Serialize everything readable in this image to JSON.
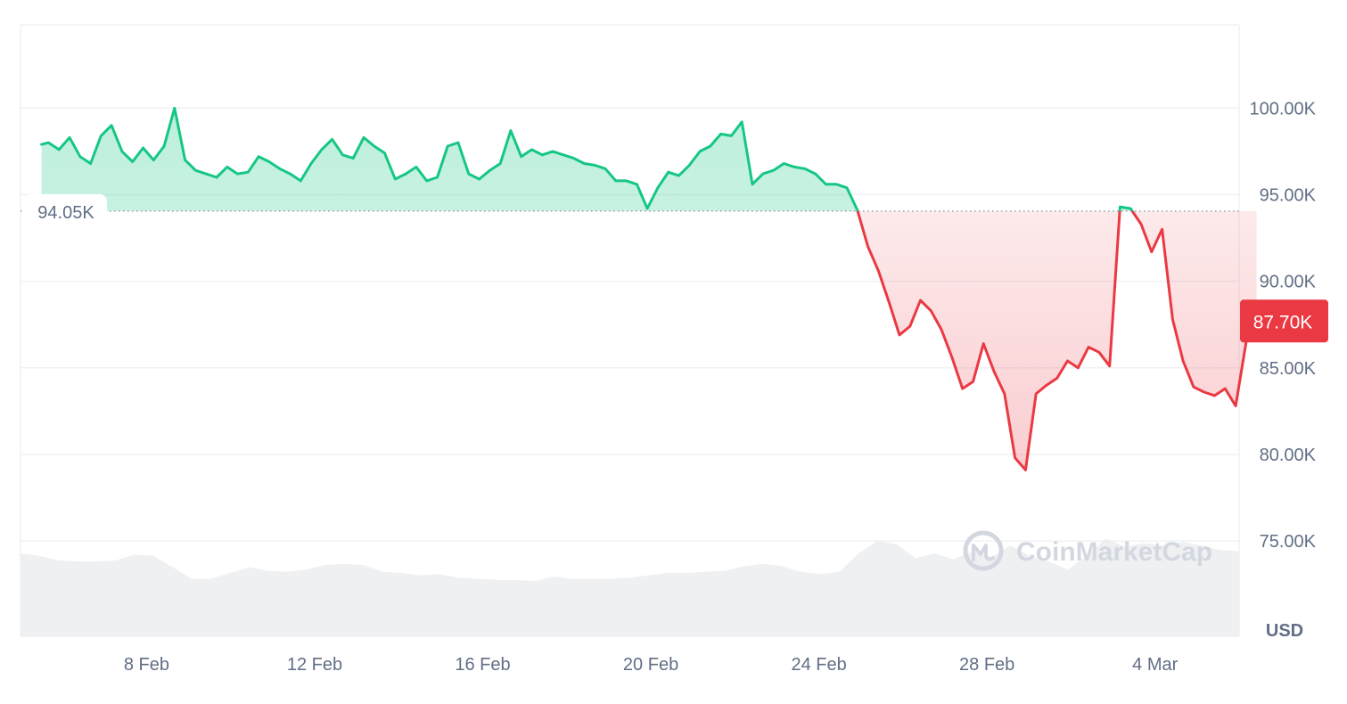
{
  "colors": {
    "up": "#16c784",
    "down": "#ea3943",
    "grid": "#eff2f5",
    "text": "#616e85",
    "volume": "#e9ebee"
  },
  "watermark": "CoinMarketCap",
  "chart_data": {
    "type": "area",
    "title": "",
    "xlabel": "",
    "ylabel": "USD",
    "grid": true,
    "xlim": [
      "2025-02-05",
      "2025-03-06"
    ],
    "ylim": [
      69500,
      104800
    ],
    "y_ticks": [
      {
        "value": 100000,
        "label": "100.00K"
      },
      {
        "value": 95000,
        "label": "95.00K"
      },
      {
        "value": 90000,
        "label": "90.00K"
      },
      {
        "value": 85000,
        "label": "85.00K"
      },
      {
        "value": 80000,
        "label": "80.00K"
      },
      {
        "value": 75000,
        "label": "75.00K"
      }
    ],
    "x_ticks": [
      {
        "date": "2025-02-08",
        "label": "8 Feb"
      },
      {
        "date": "2025-02-12",
        "label": "12 Feb"
      },
      {
        "date": "2025-02-16",
        "label": "16 Feb"
      },
      {
        "date": "2025-02-20",
        "label": "20 Feb"
      },
      {
        "date": "2025-02-24",
        "label": "24 Feb"
      },
      {
        "date": "2025-02-28",
        "label": "28 Feb"
      },
      {
        "date": "2025-03-04",
        "label": "4 Mar"
      }
    ],
    "baseline": {
      "value": 94050,
      "label": "94.05K"
    },
    "current": {
      "value": 87700,
      "label": "87.70K"
    },
    "series": [
      {
        "x": [
          "2025-02-05 12:00",
          "2025-02-05 16:00",
          "2025-02-05 22:00",
          "2025-02-06 04:00",
          "2025-02-06 10:00",
          "2025-02-06 16:00",
          "2025-02-06 22:00",
          "2025-02-07 04:00",
          "2025-02-07 10:00",
          "2025-02-07 16:00",
          "2025-02-07 22:00",
          "2025-02-08 04:00",
          "2025-02-08 10:00",
          "2025-02-08 16:00",
          "2025-02-08 22:00",
          "2025-02-09 04:00",
          "2025-02-09 10:00",
          "2025-02-09 16:00",
          "2025-02-09 22:00",
          "2025-02-10 04:00",
          "2025-02-10 10:00",
          "2025-02-10 16:00",
          "2025-02-10 22:00",
          "2025-02-11 04:00",
          "2025-02-11 10:00",
          "2025-02-11 16:00",
          "2025-02-11 22:00",
          "2025-02-12 04:00",
          "2025-02-12 10:00",
          "2025-02-12 16:00",
          "2025-02-12 22:00",
          "2025-02-13 04:00",
          "2025-02-13 10:00",
          "2025-02-13 16:00",
          "2025-02-13 22:00",
          "2025-02-14 04:00",
          "2025-02-14 10:00",
          "2025-02-14 16:00",
          "2025-02-14 22:00",
          "2025-02-15 04:00",
          "2025-02-15 10:00",
          "2025-02-15 16:00",
          "2025-02-15 22:00",
          "2025-02-16 04:00",
          "2025-02-16 10:00",
          "2025-02-16 16:00",
          "2025-02-16 22:00",
          "2025-02-17 04:00",
          "2025-02-17 10:00",
          "2025-02-17 16:00",
          "2025-02-17 22:00",
          "2025-02-18 04:00",
          "2025-02-18 10:00",
          "2025-02-18 16:00",
          "2025-02-18 22:00",
          "2025-02-19 04:00",
          "2025-02-19 10:00",
          "2025-02-19 16:00",
          "2025-02-19 22:00",
          "2025-02-20 04:00",
          "2025-02-20 10:00",
          "2025-02-20 16:00",
          "2025-02-20 22:00",
          "2025-02-21 04:00",
          "2025-02-21 10:00",
          "2025-02-21 16:00",
          "2025-02-21 22:00",
          "2025-02-22 04:00",
          "2025-02-22 10:00",
          "2025-02-22 16:00",
          "2025-02-22 22:00",
          "2025-02-23 04:00",
          "2025-02-23 10:00",
          "2025-02-23 16:00",
          "2025-02-23 22:00",
          "2025-02-24 04:00",
          "2025-02-24 10:00",
          "2025-02-24 16:00",
          "2025-02-24 22:00",
          "2025-02-25 04:00",
          "2025-02-25 10:00",
          "2025-02-25 16:00",
          "2025-02-25 22:00",
          "2025-02-26 04:00",
          "2025-02-26 10:00",
          "2025-02-26 16:00",
          "2025-02-26 22:00",
          "2025-02-27 04:00",
          "2025-02-27 10:00",
          "2025-02-27 16:00",
          "2025-02-27 22:00",
          "2025-02-28 04:00",
          "2025-02-28 10:00",
          "2025-02-28 16:00",
          "2025-02-28 22:00",
          "2025-03-01 04:00",
          "2025-03-01 10:00",
          "2025-03-01 16:00",
          "2025-03-01 22:00",
          "2025-03-02 04:00",
          "2025-03-02 10:00",
          "2025-03-02 16:00",
          "2025-03-02 22:00",
          "2025-03-03 04:00",
          "2025-03-03 10:00",
          "2025-03-03 16:00",
          "2025-03-03 22:00",
          "2025-03-04 04:00",
          "2025-03-04 10:00",
          "2025-03-04 16:00",
          "2025-03-04 22:00",
          "2025-03-05 04:00",
          "2025-03-05 10:00",
          "2025-03-05 16:00",
          "2025-03-05 22:00",
          "2025-03-06 04:00",
          "2025-03-06 10:00"
        ],
        "values": [
          97900,
          98000,
          97600,
          98300,
          97200,
          96800,
          98400,
          99000,
          97500,
          96900,
          97700,
          97000,
          97800,
          100000,
          97000,
          96400,
          96200,
          96000,
          96600,
          96200,
          96300,
          97200,
          96900,
          96500,
          96200,
          95800,
          96800,
          97600,
          98200,
          97300,
          97100,
          98300,
          97800,
          97400,
          95900,
          96200,
          96600,
          95800,
          96000,
          97800,
          98000,
          96200,
          95900,
          96400,
          96800,
          98700,
          97200,
          97600,
          97300,
          97500,
          97300,
          97100,
          96800,
          96700,
          96500,
          95800,
          95800,
          95600,
          94200,
          95400,
          96300,
          96100,
          96700,
          97500,
          97800,
          98500,
          98400,
          99200,
          95600,
          96200,
          96400,
          96800,
          96600,
          96500,
          96200,
          95600,
          95600,
          95400,
          94100,
          92000,
          90600,
          88800,
          86900,
          87400,
          88900,
          88300,
          87200,
          85600,
          83800,
          84200,
          86400,
          84800,
          83500,
          79800,
          79100,
          83500,
          84000,
          84400,
          85400,
          85000,
          86200,
          85900,
          85100,
          94300,
          94200,
          93300,
          91700,
          93000,
          87800,
          85400,
          83900,
          83600,
          83400,
          83800,
          82800,
          86500,
          87700
        ],
        "name": ""
      }
    ],
    "volume": [
      0.72,
      0.7,
      0.66,
      0.65,
      0.65,
      0.66,
      0.71,
      0.7,
      0.6,
      0.5,
      0.5,
      0.55,
      0.6,
      0.57,
      0.56,
      0.58,
      0.62,
      0.63,
      0.62,
      0.56,
      0.55,
      0.53,
      0.54,
      0.51,
      0.5,
      0.49,
      0.49,
      0.48,
      0.52,
      0.5,
      0.5,
      0.5,
      0.51,
      0.53,
      0.55,
      0.55,
      0.56,
      0.57,
      0.61,
      0.63,
      0.61,
      0.56,
      0.54,
      0.56,
      0.72,
      0.83,
      0.8,
      0.68,
      0.72,
      0.67,
      0.74,
      0.69,
      0.79,
      0.7,
      0.65,
      0.58,
      0.7,
      0.85,
      0.78,
      0.81,
      0.79,
      0.82,
      0.79,
      0.75,
      0.74
    ]
  }
}
